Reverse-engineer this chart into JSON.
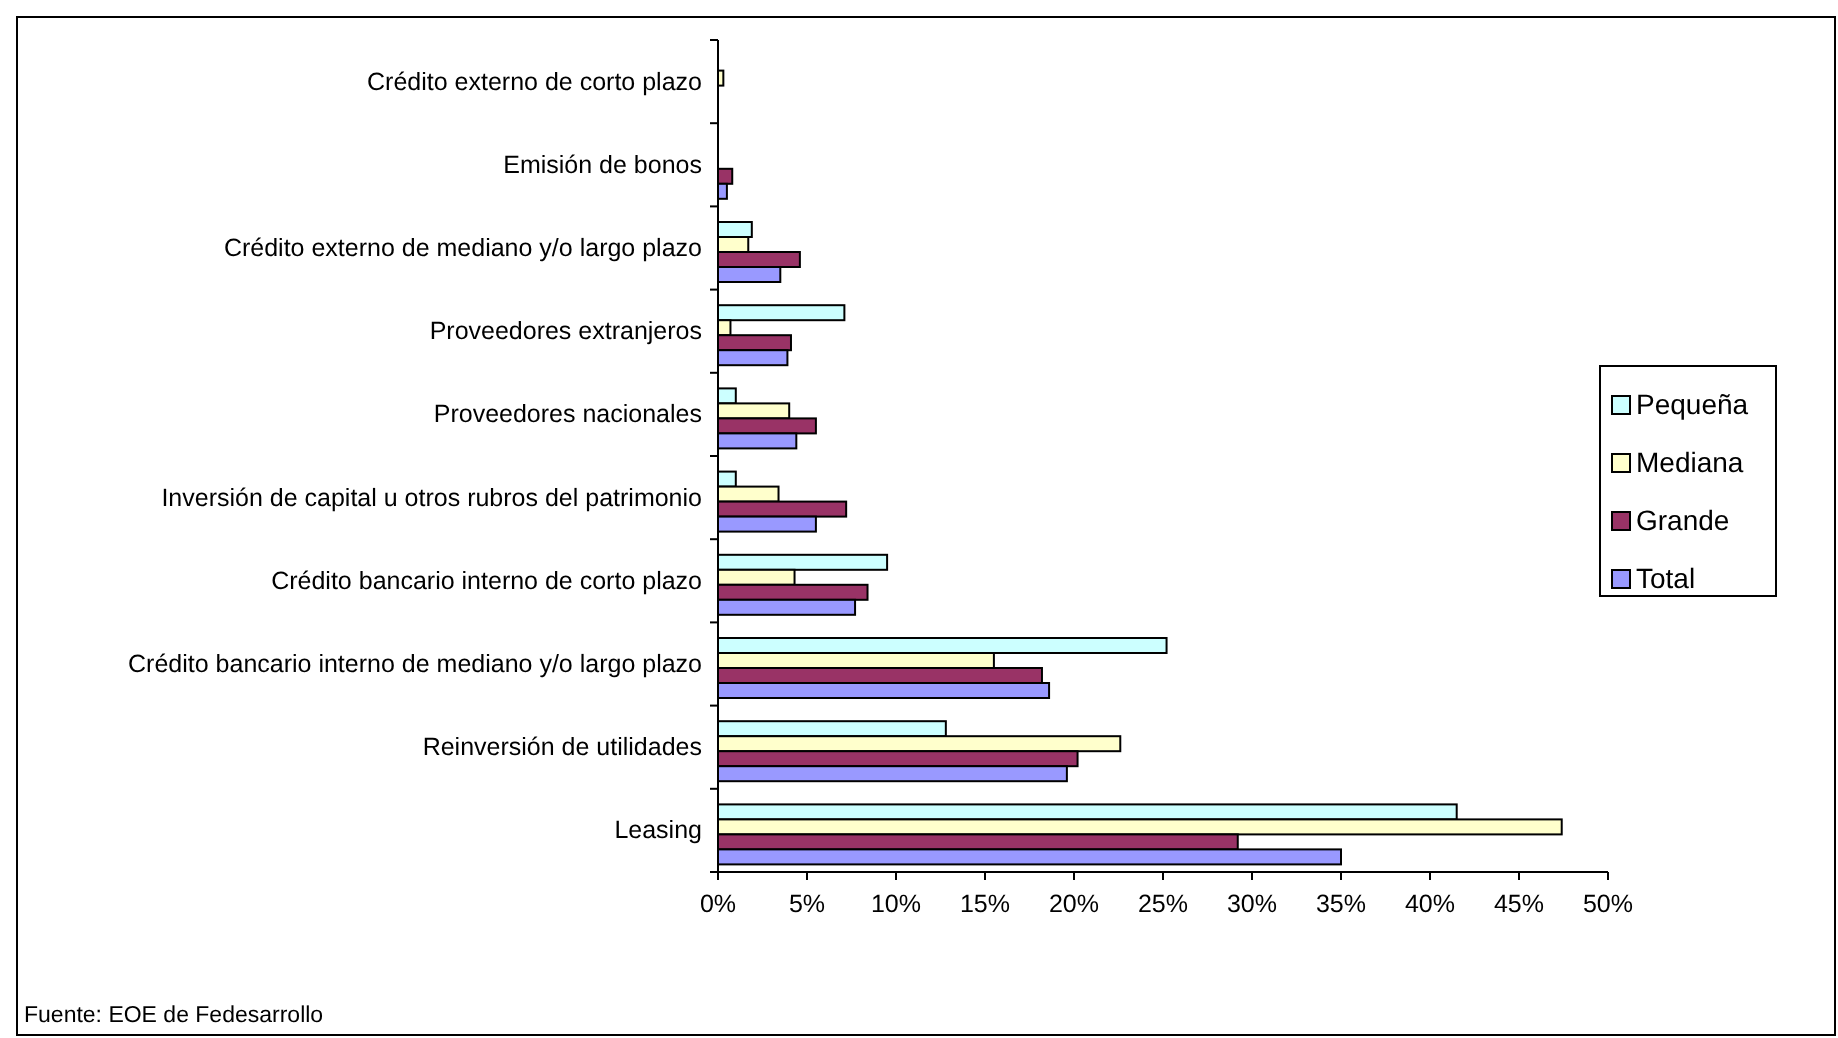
{
  "chart_data": {
    "type": "bar",
    "orientation": "horizontal",
    "categories": [
      "Crédito externo de corto plazo",
      "Emisión de bonos",
      "Crédito externo de mediano y/o largo plazo",
      "Proveedores extranjeros",
      "Proveedores nacionales",
      "Inversión de capital  u otros rubros del patrimonio",
      "Crédito bancario interno de corto plazo ",
      "Crédito bancario interno de mediano y/o largo plazo",
      "Reinversión de utilidades",
      "Leasing"
    ],
    "series": [
      {
        "name": "Pequeña",
        "color": "#ccffff",
        "values": [
          0,
          0,
          1.9,
          7.1,
          1.0,
          1.0,
          9.5,
          25.2,
          12.8,
          41.5
        ]
      },
      {
        "name": "Mediana",
        "color": "#ffffcc",
        "values": [
          0.3,
          0,
          1.7,
          0.7,
          4.0,
          3.4,
          4.3,
          15.5,
          22.6,
          47.4
        ]
      },
      {
        "name": "Grande",
        "color": "#993366",
        "values": [
          0,
          0.8,
          4.6,
          4.1,
          5.5,
          7.2,
          8.4,
          18.2,
          20.2,
          29.2
        ]
      },
      {
        "name": "Total",
        "color": "#9999ff",
        "values": [
          0,
          0.5,
          3.5,
          3.9,
          4.4,
          5.5,
          7.7,
          18.6,
          19.6,
          35.0
        ]
      }
    ],
    "xlim": [
      0,
      50
    ],
    "xticks": [
      {
        "value": 0,
        "label": "0%"
      },
      {
        "value": 5,
        "label": "5%"
      },
      {
        "value": 10,
        "label": "10%"
      },
      {
        "value": 15,
        "label": "15%"
      },
      {
        "value": 20,
        "label": "20%"
      },
      {
        "value": 25,
        "label": "25%"
      },
      {
        "value": 30,
        "label": "30%"
      },
      {
        "value": 35,
        "label": "35%"
      },
      {
        "value": 40,
        "label": "40%"
      },
      {
        "value": 45,
        "label": "45%"
      },
      {
        "value": 50,
        "label": "50%"
      }
    ],
    "legend": "right",
    "grid": false,
    "annotations": [
      "Fuente: EOE de Fedesarrollo"
    ]
  }
}
